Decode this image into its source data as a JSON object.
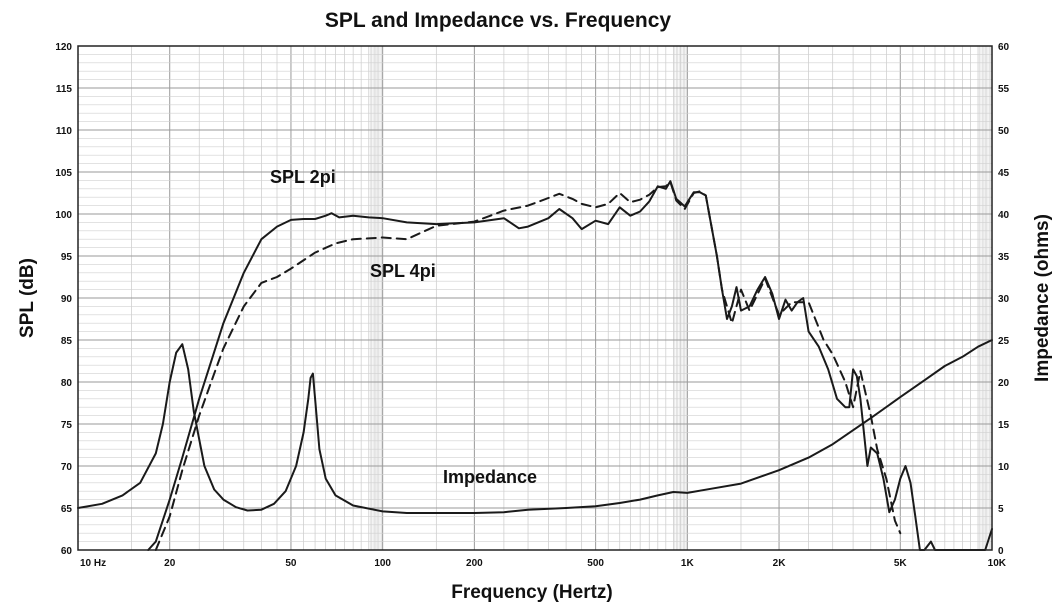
{
  "chart_data": {
    "type": "line",
    "title": "SPL and Impedance vs. Frequency",
    "xlabel": "Frequency (Hertz)",
    "ylabel": "SPL (dB)",
    "y2label": "Impedance (ohms)",
    "x_scale": "log",
    "xlim": [
      10,
      10000
    ],
    "ylim": [
      60,
      120
    ],
    "y2lim": [
      0,
      60
    ],
    "grid": true,
    "x_ticks": [
      {
        "value": 10,
        "label": "10  Hz"
      },
      {
        "value": 20,
        "label": "20"
      },
      {
        "value": 50,
        "label": "50"
      },
      {
        "value": 100,
        "label": "100"
      },
      {
        "value": 200,
        "label": "200"
      },
      {
        "value": 500,
        "label": "500"
      },
      {
        "value": 1000,
        "label": "1K"
      },
      {
        "value": 2000,
        "label": "2K"
      },
      {
        "value": 5000,
        "label": "5K"
      },
      {
        "value": 10000,
        "label": "10K"
      }
    ],
    "y_ticks": [
      60,
      65,
      70,
      75,
      80,
      85,
      90,
      95,
      100,
      105,
      110,
      115,
      120
    ],
    "y2_ticks": [
      0,
      5,
      10,
      15,
      20,
      25,
      30,
      35,
      40,
      45,
      50,
      55,
      60
    ],
    "annotations": {
      "spl2pi": "SPL 2pi",
      "spl4pi": "SPL 4pi",
      "impedance": "Impedance"
    },
    "series": [
      {
        "name": "SPL 2pi",
        "axis": "left",
        "style": "solid",
        "x": [
          17,
          18,
          20,
          22,
          25,
          30,
          35,
          40,
          45,
          50,
          55,
          60,
          65,
          68,
          72,
          80,
          90,
          100,
          120,
          150,
          200,
          250,
          280,
          300,
          350,
          380,
          420,
          450,
          500,
          550,
          600,
          650,
          700,
          750,
          800,
          850,
          880,
          920,
          980,
          1050,
          1100,
          1150,
          1200,
          1250,
          1300,
          1350,
          1400,
          1450,
          1500,
          1600,
          1700,
          1800,
          1900,
          2000,
          2100,
          2200,
          2300,
          2400,
          2500,
          2700,
          2900,
          3100,
          3300,
          3400,
          3500,
          3600,
          3700,
          3900,
          4000,
          4200,
          4400,
          4600,
          4800,
          5000,
          5200,
          5400,
          5600,
          5800,
          6000,
          6300,
          6500,
          7000,
          8000,
          9000,
          9500,
          10000
        ],
        "y": [
          59,
          61,
          66,
          71,
          78,
          87,
          93,
          97,
          98.5,
          99.3,
          99.4,
          99.4,
          99.8,
          100.1,
          99.6,
          99.8,
          99.6,
          99.5,
          99,
          98.8,
          99,
          99.5,
          98.3,
          98.5,
          99.5,
          100.6,
          99.5,
          98.2,
          99.2,
          98.8,
          100.8,
          99.8,
          100.3,
          101.5,
          103.3,
          103,
          103.9,
          101.8,
          100.9,
          102.6,
          102.6,
          102.2,
          98.5,
          95,
          91,
          87.5,
          89,
          91.3,
          88.5,
          89,
          91,
          92.5,
          90.5,
          87.5,
          89.8,
          88.5,
          89.5,
          90,
          86,
          84.2,
          81.5,
          78,
          77,
          77,
          81.5,
          80.7,
          78,
          70,
          72.2,
          71.5,
          68.5,
          64.5,
          66,
          68.5,
          70,
          68,
          64,
          60,
          59,
          61,
          59,
          58.5,
          59,
          58,
          60,
          62.5
        ]
      },
      {
        "name": "SPL 4pi",
        "axis": "left",
        "style": "dashed",
        "x": [
          18,
          20,
          22,
          25,
          28,
          30,
          35,
          40,
          45,
          50,
          60,
          70,
          80,
          90,
          100,
          120,
          150,
          200,
          250,
          300,
          350,
          380,
          420,
          450,
          500,
          550,
          600,
          650,
          700,
          750,
          800,
          850,
          880,
          920,
          980,
          1050,
          1100,
          1150,
          1200,
          1250,
          1300,
          1400,
          1500,
          1600,
          1800,
          2000,
          2200,
          2500,
          2800,
          3000,
          3300,
          3500,
          3700,
          4000,
          4200,
          4500,
          4800,
          5000
        ],
        "y": [
          59.5,
          64,
          69.5,
          76,
          81,
          84,
          89,
          91.8,
          92.5,
          93.5,
          95.4,
          96.5,
          97,
          97.1,
          97.2,
          97,
          98.6,
          99.1,
          100.4,
          101,
          101.9,
          102.4,
          101.8,
          101.2,
          100.8,
          101.2,
          102.5,
          101.4,
          101.7,
          102.3,
          103.2,
          103.3,
          103.8,
          101.6,
          100.6,
          102.5,
          102.7,
          102.2,
          98.5,
          95,
          91,
          87,
          91,
          88.5,
          92.3,
          88,
          89.5,
          89.5,
          85,
          83.3,
          80,
          77,
          81.3,
          76,
          72,
          68.5,
          63.5,
          62
        ]
      },
      {
        "name": "Impedance",
        "axis": "right",
        "style": "solid",
        "x": [
          10,
          12,
          14,
          16,
          18,
          19,
          20,
          21,
          22,
          23,
          24,
          26,
          28,
          30,
          33,
          36,
          40,
          44,
          48,
          52,
          55,
          57,
          58,
          59,
          60,
          62,
          65,
          70,
          80,
          100,
          120,
          150,
          200,
          250,
          300,
          400,
          500,
          600,
          700,
          800,
          900,
          1000,
          1200,
          1500,
          2000,
          2500,
          3000,
          4000,
          5000,
          6000,
          7000,
          8000,
          9000,
          10000
        ],
        "y": [
          5,
          5.5,
          6.5,
          8,
          11.5,
          15,
          20,
          23.5,
          24.5,
          21.5,
          16.5,
          10,
          7.2,
          6,
          5.1,
          4.7,
          4.8,
          5.5,
          7,
          10,
          14,
          18,
          20.5,
          21,
          18,
          12,
          8.5,
          6.5,
          5.3,
          4.6,
          4.4,
          4.4,
          4.4,
          4.5,
          4.8,
          5,
          5.2,
          5.6,
          6,
          6.5,
          6.9,
          6.8,
          7.3,
          7.9,
          9.5,
          11,
          12.6,
          15.7,
          18.2,
          20.2,
          21.9,
          23,
          24.2,
          25
        ]
      }
    ]
  }
}
